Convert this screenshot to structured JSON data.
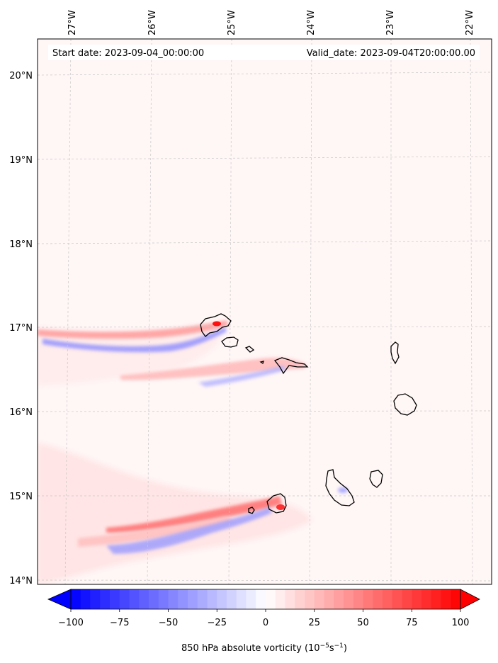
{
  "header": {
    "start_date": "Start date: 2023-09-04_00:00:00",
    "valid_date": "Valid_date: 2023-09-04T20:00:00.00"
  },
  "map": {
    "lon_labels": [
      "27°W",
      "26°W",
      "25°W",
      "24°W",
      "23°W",
      "22°W"
    ],
    "lat_labels": [
      "20°N",
      "19°N",
      "18°N",
      "17°N",
      "16°N",
      "15°N",
      "14°N"
    ],
    "lon_range": [
      -27.3,
      -21.8
    ],
    "lat_range": [
      13.95,
      20.4
    ],
    "gridlines": true,
    "features": [
      {
        "name": "Santo Antão",
        "type": "island"
      },
      {
        "name": "São Vicente",
        "type": "island"
      },
      {
        "name": "Santa Luzia",
        "type": "island"
      },
      {
        "name": "São Nicolau",
        "type": "island"
      },
      {
        "name": "Sal",
        "type": "island"
      },
      {
        "name": "Boa Vista",
        "type": "island"
      },
      {
        "name": "Santiago",
        "type": "island"
      },
      {
        "name": "Maio",
        "type": "island"
      },
      {
        "name": "Fogo",
        "type": "island"
      },
      {
        "name": "Brava",
        "type": "island"
      }
    ]
  },
  "colorbar": {
    "ticks": [
      "−100",
      "−75",
      "−50",
      "−25",
      "0",
      "25",
      "50",
      "75",
      "100"
    ],
    "min": -100,
    "max": 100,
    "extend": "both",
    "colormap": "bwr",
    "colors": {
      "low": "#0000ff",
      "mid": "#ffffff",
      "high": "#ff0000"
    },
    "label_prefix": "850 hPa absolute vorticity (10",
    "label_exp1": "−5",
    "label_mid": "s",
    "label_exp2": "−1",
    "label_suffix": ")"
  }
}
